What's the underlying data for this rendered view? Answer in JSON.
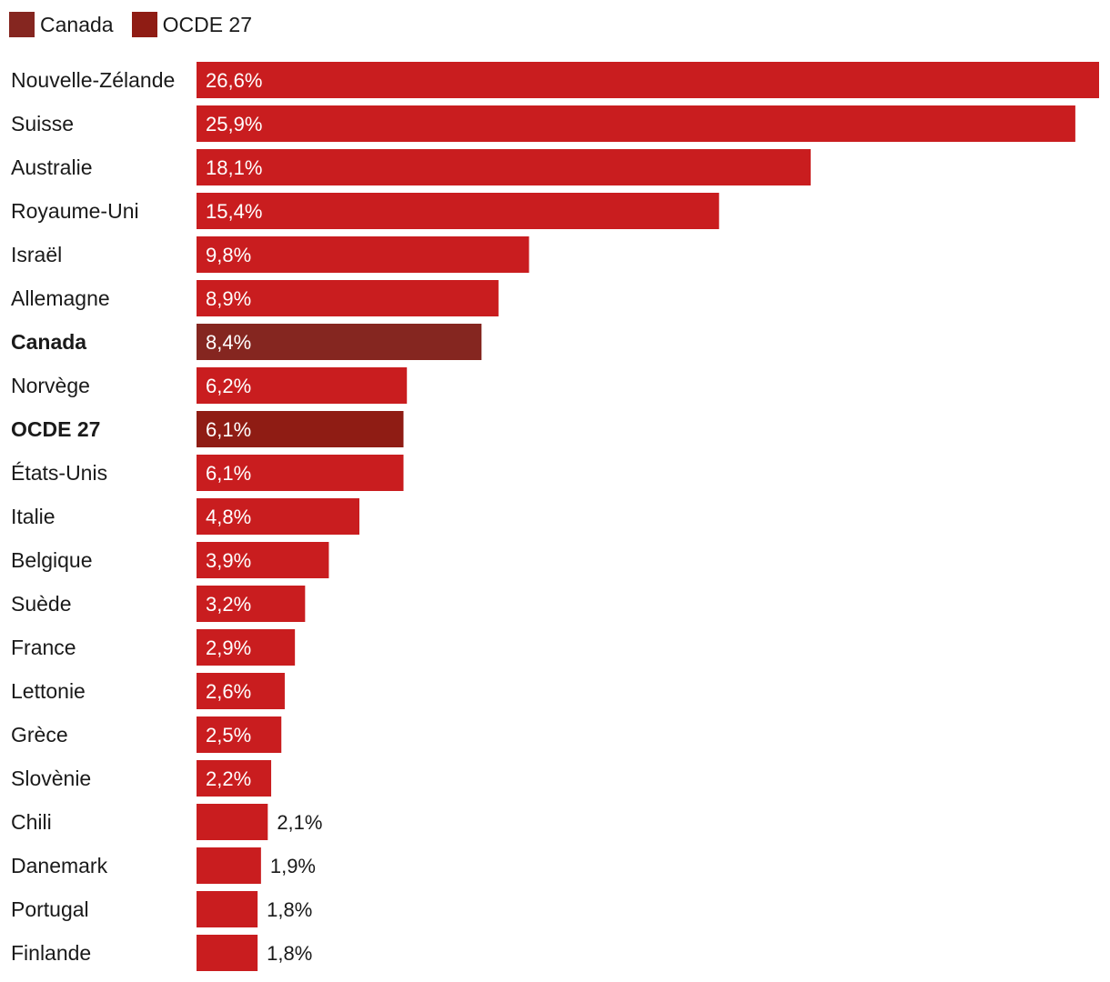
{
  "legend": [
    {
      "label": "Canada",
      "color": "#852620"
    },
    {
      "label": "OCDE 27",
      "color": "#8f1c14"
    }
  ],
  "chart_data": {
    "type": "bar",
    "orientation": "horizontal",
    "categories": [
      "Nouvelle-Zélande",
      "Suisse",
      "Australie",
      "Royaume-Uni",
      "Israël",
      "Allemagne",
      "Canada",
      "Norvège",
      "OCDE 27",
      "États-Unis",
      "Italie",
      "Belgique",
      "Suède",
      "France",
      "Lettonie",
      "Grèce",
      "Slovènie",
      "Chili",
      "Danemark",
      "Portugal",
      "Finlande"
    ],
    "values": [
      26.6,
      25.9,
      18.1,
      15.4,
      9.8,
      8.9,
      8.4,
      6.2,
      6.1,
      6.1,
      4.8,
      3.9,
      3.2,
      2.9,
      2.6,
      2.5,
      2.2,
      2.1,
      1.9,
      1.8,
      1.8
    ],
    "labels": [
      "26,6%",
      "25,9%",
      "18,1%",
      "15,4%",
      "9,8%",
      "8,9%",
      "8,4%",
      "6,2%",
      "6,1%",
      "6,1%",
      "4,8%",
      "3,9%",
      "3,2%",
      "2,9%",
      "2,6%",
      "2,5%",
      "2,2%",
      "2,1%",
      "1,9%",
      "1,8%",
      "1,8%"
    ],
    "highlighted": [
      "Canada",
      "OCDE 27"
    ],
    "colors": {
      "default": "#c91d1f",
      "Canada": "#852620",
      "OCDE 27": "#8f1c14",
      "label_inside": "#ffffff",
      "label_outside": "#1a1a1a"
    },
    "xlim": [
      0,
      26.6
    ],
    "grid": false,
    "legend_position": "top-left"
  }
}
